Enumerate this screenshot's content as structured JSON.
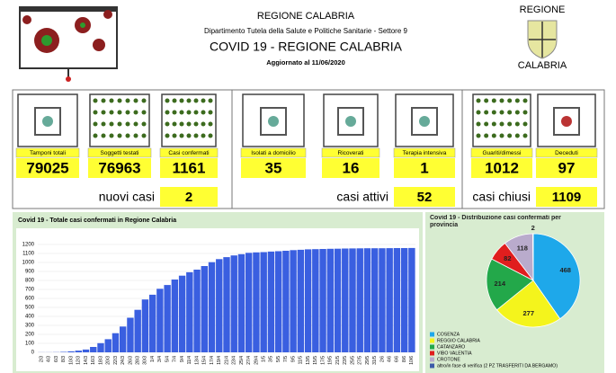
{
  "header": {
    "title": "REGIONE CALABRIA",
    "department": "Dipartimento Tutela della Salute e Politiche Sanitarie - Settore 9",
    "subtitle": "COVID 19 - REGIONE CALABRIA",
    "updated": "Aggiornato al  11/06/2020",
    "logo_top": "REGIONE",
    "logo_bottom": "CALABRIA"
  },
  "kpis": [
    {
      "label": "Tamponi totali",
      "value": 79025
    },
    {
      "label": "Soggetti testati",
      "value": 76963
    },
    {
      "label": "Casi confermati",
      "value": 1161
    },
    {
      "label": "Isolati a domicilio",
      "value": 35
    },
    {
      "label": "Ricoverati",
      "value": 16
    },
    {
      "label": "Terapia intensiva",
      "value": 1
    },
    {
      "label": "Guariti/dimessi",
      "value": 1012
    },
    {
      "label": "Deceduti",
      "value": 97
    }
  ],
  "summary": [
    {
      "label": "nuovi casi",
      "value": 2
    },
    {
      "label": "casi attivi",
      "value": 52
    },
    {
      "label": "casi chiusi",
      "value": 1109
    }
  ],
  "chart_data": [
    {
      "type": "bar",
      "title": "Covid 19 - Totale casi confermati in Regione Calabria",
      "color": "#3a5fe0",
      "categories": [
        "2/3",
        "4/3",
        "6/3",
        "8/3",
        "10/3",
        "12/3",
        "14/3",
        "16/3",
        "18/3",
        "20/3",
        "22/3",
        "24/3",
        "26/3",
        "28/3",
        "30/3",
        "1/4",
        "3/4",
        "5/4",
        "7/4",
        "9/4",
        "11/4",
        "13/4",
        "15/4",
        "17/4",
        "19/4",
        "21/4",
        "23/4",
        "25/4",
        "27/4",
        "29/4",
        "1/5",
        "3/5",
        "5/5",
        "7/5",
        "9/5",
        "11/5",
        "13/5",
        "15/5",
        "17/5",
        "19/5",
        "21/5",
        "23/5",
        "25/5",
        "27/5",
        "29/5",
        "31/5",
        "2/6",
        "4/6",
        "6/6",
        "8/6",
        "10/6"
      ],
      "values": [
        1,
        1,
        2,
        5,
        11,
        19,
        31,
        60,
        102,
        146,
        213,
        287,
        385,
        473,
        588,
        641,
        707,
        749,
        810,
        853,
        891,
        920,
        960,
        1003,
        1037,
        1059,
        1078,
        1092,
        1107,
        1112,
        1115,
        1121,
        1125,
        1130,
        1137,
        1141,
        1146,
        1148,
        1150,
        1152,
        1153,
        1155,
        1156,
        1157,
        1158,
        1158,
        1158,
        1159,
        1160,
        1160,
        1161
      ],
      "ylim": [
        0,
        1300
      ],
      "yticks": [
        0,
        100,
        200,
        300,
        400,
        500,
        600,
        700,
        800,
        900,
        1000,
        1100,
        1200
      ],
      "grid": true
    },
    {
      "type": "pie",
      "title": "Covid 19 - Distribuzione casi confermati per provincia",
      "categories": [
        "COSENZA",
        "REGGIO CALABRIA",
        "CATANZARO",
        "VIBO VALENTIA",
        "CROTONE",
        "altro/in fase di verifica (2 PZ TRASFERITI DA BERGAMO)"
      ],
      "values": [
        468,
        277,
        214,
        82,
        118,
        2
      ],
      "colors": [
        "#1ea8ea",
        "#f4f41c",
        "#23a84a",
        "#e01e1e",
        "#b9abcc",
        "#3d5ba9"
      ]
    }
  ]
}
